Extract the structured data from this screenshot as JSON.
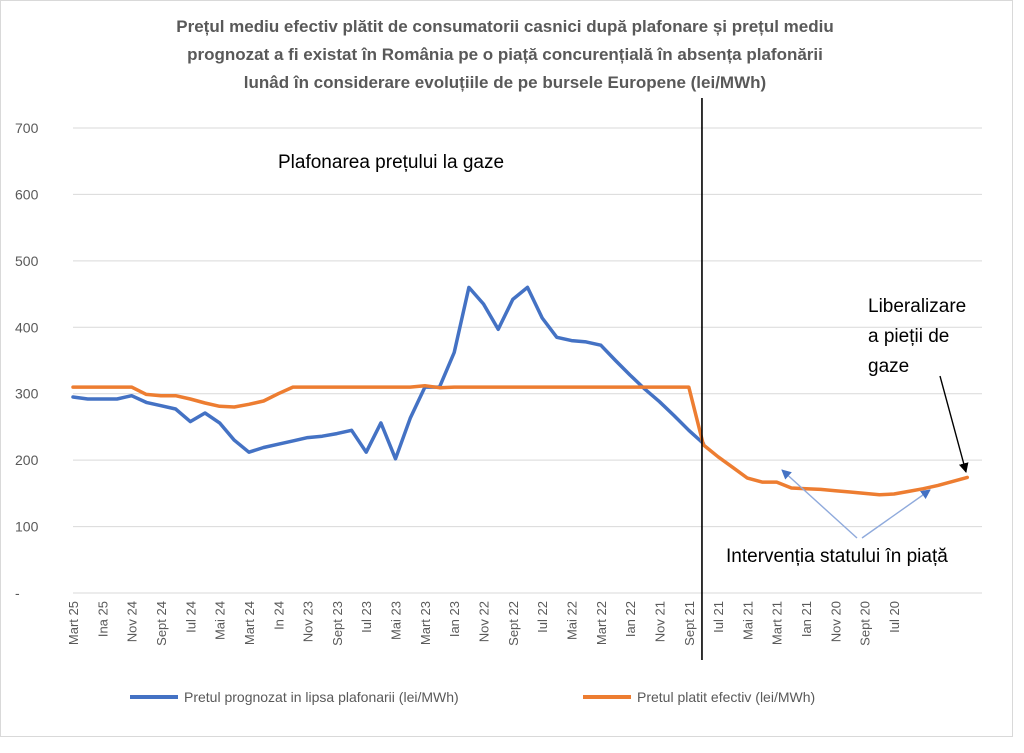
{
  "chart_data": {
    "type": "line",
    "title_lines": [
      "Prețul mediu efectiv plătit de consumatorii casnici după plafonare și prețul mediu",
      "prognozat a fi existat în România pe o piață concurențială în absența plafonării",
      "lunâd în considerare evoluțiile de pe bursele Europene (lei/MWh)"
    ],
    "y_ticks": [
      {
        "value": 0,
        "label": "-"
      },
      {
        "value": 100,
        "label": "100"
      },
      {
        "value": 200,
        "label": "200"
      },
      {
        "value": 300,
        "label": "300"
      },
      {
        "value": 400,
        "label": "400"
      },
      {
        "value": 500,
        "label": "500"
      },
      {
        "value": 600,
        "label": "600"
      },
      {
        "value": 700,
        "label": "700"
      }
    ],
    "ylim": [
      0,
      700
    ],
    "grid": true,
    "x_point_count": 63,
    "x_tick_labels": [
      "Mart 25",
      "Ina 25",
      "Nov 24",
      "Sept 24",
      "Iul 24",
      "Mai 24",
      "Mart 24",
      "In 24",
      "Nov 23",
      "Sept 23",
      "Iul 23",
      "Mai 23",
      "Mart 23",
      "Ian 23",
      "Nov 22",
      "Sept 22",
      "Iul 22",
      "Mai 22",
      "Mart 22",
      "Ian 22",
      "Nov 21",
      "Sept 21",
      "Iul 21",
      "Mai 21",
      "Mart 21",
      "Ian 21",
      "Nov 20",
      "Sept 20",
      "Iul 20"
    ],
    "series": [
      {
        "name": "Pretul prognozat in lipsa plafonarii (lei/MWh)",
        "color": "#4472C4",
        "values": [
          295,
          292,
          292,
          292,
          297,
          287,
          282,
          277,
          258,
          271,
          256,
          230,
          212,
          219,
          224,
          229,
          234,
          236,
          240,
          245,
          212,
          256,
          202,
          263,
          310,
          310,
          362,
          460,
          435,
          397,
          442,
          460,
          414,
          385,
          380,
          378,
          373,
          350,
          328,
          307,
          288,
          267,
          245,
          225
        ]
      },
      {
        "name": "Pretul platit efectiv (lei/MWh)",
        "color": "#ED7D31",
        "values": [
          310,
          310,
          310,
          310,
          310,
          299,
          297,
          297,
          292,
          286,
          281,
          280,
          284,
          289,
          300,
          310,
          310,
          310,
          310,
          310,
          310,
          310,
          310,
          310,
          312,
          309,
          310,
          310,
          310,
          310,
          310,
          310,
          310,
          310,
          310,
          310,
          310,
          310,
          310,
          310,
          310,
          310,
          310,
          223,
          205,
          189,
          173,
          167,
          167,
          158,
          157,
          156,
          154,
          152,
          150,
          148,
          149,
          153,
          157,
          162,
          168,
          174
        ]
      }
    ],
    "vertical_marker_index": 42.9,
    "annotations": {
      "cap": "Plafonarea prețului la gaze",
      "liberalization": [
        "Liberalizare",
        "a pieții de",
        "gaze"
      ],
      "intervention": "Intervenția statului în piață"
    },
    "legend_position": "bottom"
  }
}
